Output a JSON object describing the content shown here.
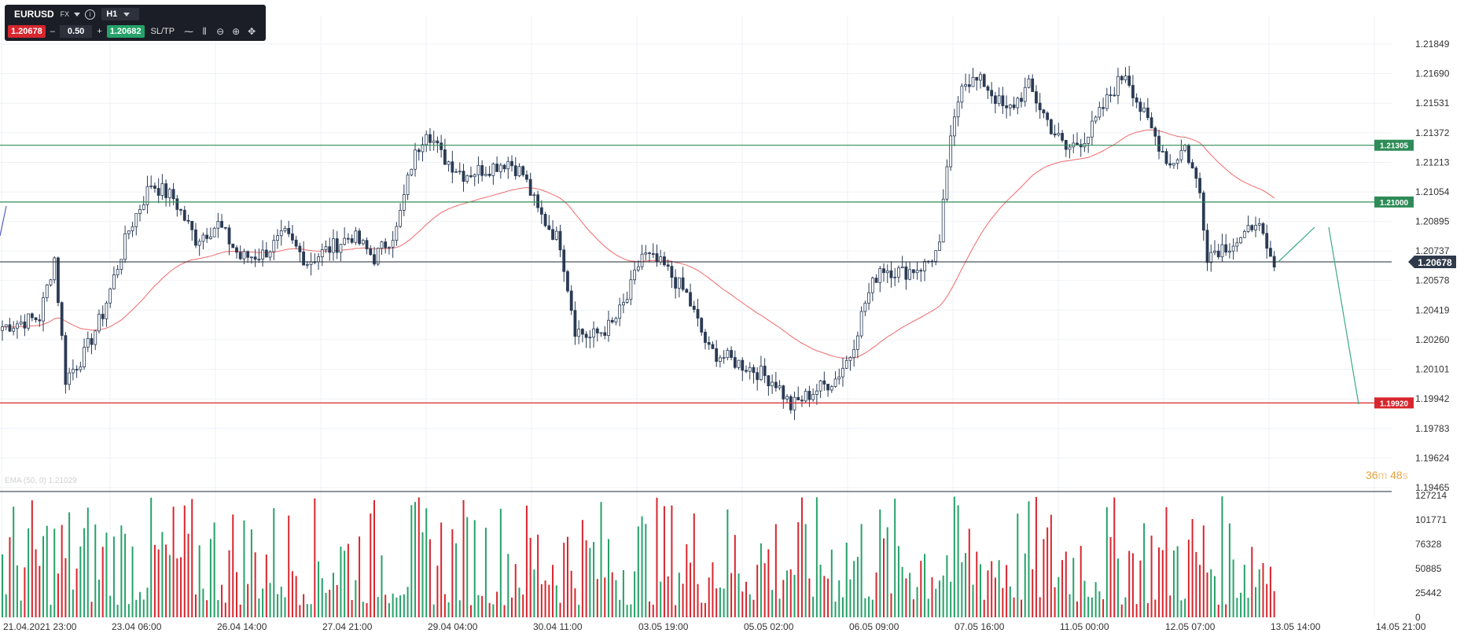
{
  "toolbar": {
    "symbol": "EURUSD",
    "market": "FX",
    "info_icon": "info-icon",
    "timeframe": "H1",
    "sell_price": "1.20678",
    "minus_label": "–",
    "lot": "0.50",
    "plus_label": "+",
    "buy_price": "1.20682",
    "sltp_label": "SL/TP",
    "icons": [
      "line-chart-icon",
      "indicators-icon",
      "zoom-out-icon",
      "zoom-in-icon",
      "crosshair-icon"
    ]
  },
  "indicator_label": "EMA (50, 0) 1.21029",
  "countdown": {
    "minutes": "36",
    "m": "m",
    "seconds": "48",
    "s": "s"
  },
  "colors": {
    "up": "#26a269",
    "down": "#d8262e",
    "body": "#2a3b55",
    "ema": "#ef6a6a",
    "level": "#2e8b57",
    "support": "#d8262e",
    "current": "#1f2937"
  },
  "chart_data": {
    "type": "candlestick",
    "symbol": "EURUSD",
    "timeframe": "H1",
    "y_ticks": [
      "1.21849",
      "1.21690",
      "1.21531",
      "1.21372",
      "1.21213",
      "1.21054",
      "1.20895",
      "1.20737",
      "1.20578",
      "1.20419",
      "1.20260",
      "1.20101",
      "1.19942",
      "1.19783",
      "1.19624",
      "1.19465"
    ],
    "ylim": [
      1.19465,
      1.21849
    ],
    "x_labels": [
      "21.04.2021 23:00",
      "23.04 06:00",
      "26.04 14:00",
      "27.04 21:00",
      "29.04 04:00",
      "30.04 11:00",
      "03.05 19:00",
      "05.05 02:00",
      "06.05 09:00",
      "07.05 16:00",
      "11.05 00:00",
      "12.05 07:00",
      "13.05 14:00",
      "14.05 21:00"
    ],
    "horizontal_levels": [
      {
        "price": 1.21305,
        "label": "1.21305",
        "kind": "resistance"
      },
      {
        "price": 1.21,
        "label": "1.21000",
        "kind": "resistance"
      },
      {
        "price": 1.1992,
        "label": "1.19920",
        "kind": "support"
      }
    ],
    "current_price": {
      "price": 1.20678,
      "label": "1.20678"
    },
    "close_anchors": [
      [
        0,
        1.2033
      ],
      [
        10,
        1.2038
      ],
      [
        14,
        1.207
      ],
      [
        17,
        1.2005
      ],
      [
        22,
        1.2018
      ],
      [
        27,
        1.204
      ],
      [
        34,
        1.2085
      ],
      [
        40,
        1.211
      ],
      [
        46,
        1.2102
      ],
      [
        52,
        1.208
      ],
      [
        58,
        1.2088
      ],
      [
        64,
        1.207
      ],
      [
        70,
        1.2072
      ],
      [
        76,
        1.2082
      ],
      [
        82,
        1.2068
      ],
      [
        88,
        1.2075
      ],
      [
        94,
        1.2082
      ],
      [
        100,
        1.207
      ],
      [
        106,
        1.2085
      ],
      [
        110,
        1.212
      ],
      [
        114,
        1.214
      ],
      [
        118,
        1.2125
      ],
      [
        124,
        1.2115
      ],
      [
        130,
        1.2118
      ],
      [
        136,
        1.2122
      ],
      [
        140,
        1.2115
      ],
      [
        144,
        1.2095
      ],
      [
        150,
        1.2078
      ],
      [
        154,
        1.2032
      ],
      [
        158,
        1.2027
      ],
      [
        164,
        1.2034
      ],
      [
        168,
        1.2048
      ],
      [
        172,
        1.2072
      ],
      [
        178,
        1.2065
      ],
      [
        184,
        1.205
      ],
      [
        190,
        1.202
      ],
      [
        196,
        1.2015
      ],
      [
        202,
        1.201
      ],
      [
        208,
        1.2003
      ],
      [
        212,
        1.199
      ],
      [
        218,
        1.1998
      ],
      [
        224,
        1.2005
      ],
      [
        228,
        1.2018
      ],
      [
        232,
        1.2046
      ],
      [
        236,
        1.2065
      ],
      [
        242,
        1.2062
      ],
      [
        248,
        1.2066
      ],
      [
        252,
        1.2075
      ],
      [
        254,
        1.212
      ],
      [
        258,
        1.2166
      ],
      [
        264,
        1.2164
      ],
      [
        270,
        1.2148
      ],
      [
        276,
        1.2162
      ],
      [
        282,
        1.214
      ],
      [
        286,
        1.2128
      ],
      [
        292,
        1.2136
      ],
      [
        298,
        1.2158
      ],
      [
        302,
        1.217
      ],
      [
        306,
        1.215
      ],
      [
        310,
        1.2135
      ],
      [
        314,
        1.212
      ],
      [
        318,
        1.213
      ],
      [
        322,
        1.2105
      ],
      [
        324,
        1.2072
      ],
      [
        328,
        1.2076
      ],
      [
        334,
        1.208
      ],
      [
        337,
        1.2092
      ],
      [
        340,
        1.2072
      ],
      [
        342,
        1.2065
      ]
    ],
    "volume_y_ticks": [
      "127214",
      "101771",
      "76328",
      "50885",
      "25442",
      "0"
    ],
    "volume_max": 127214,
    "ema_period": 50
  }
}
